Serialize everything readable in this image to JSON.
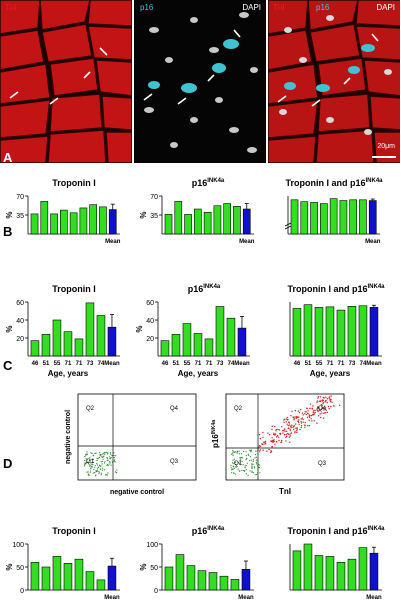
{
  "panel_labels": {
    "a": "A",
    "b": "B",
    "c": "C",
    "d": "D"
  },
  "micrographs": {
    "left": {
      "label": "TnI"
    },
    "middle": {
      "label_p16": "p16",
      "label_dapi": "DAPI"
    },
    "right": {
      "label_tni": "TnI",
      "label_p16": "p16",
      "label_dapi": "DAPI"
    },
    "scale_bar": "20μm"
  },
  "colors": {
    "bar": "#33dd22",
    "mean": "#1010d0",
    "red": "#c81818",
    "cyan": "#3fc3d0"
  },
  "chart_data": [
    {
      "id": "B1",
      "type": "bar",
      "title": "Troponin I",
      "ylabel": "%",
      "yticks": [
        "35",
        "70"
      ],
      "ylim": [
        0,
        70
      ],
      "values": [
        37,
        60,
        37,
        44,
        39,
        48,
        54,
        50
      ],
      "mean": 45,
      "mean_err": 10,
      "mean_label": "Mean"
    },
    {
      "id": "B2",
      "type": "bar",
      "title": "p16",
      "title_sup": "INK4a",
      "ylabel": "%",
      "yticks": [
        "35",
        "70"
      ],
      "ylim": [
        0,
        70
      ],
      "values": [
        36,
        60,
        36,
        46,
        40,
        52,
        56,
        51
      ],
      "mean": 46,
      "mean_err": 10,
      "mean_label": "Mean"
    },
    {
      "id": "B3",
      "type": "bar",
      "title": "Troponin I  and  p16",
      "title_sup": "INK4a",
      "ylabel": "",
      "yticks": [],
      "ylim": [
        90,
        100
      ],
      "values": [
        99,
        98.5,
        98.3,
        98,
        99.3,
        98.8,
        99,
        99
      ],
      "mean": 98.8,
      "mean_err": 0.4,
      "mean_label": "Mean"
    },
    {
      "id": "C1",
      "type": "bar",
      "title": "Troponin I",
      "ylabel": "%",
      "yticks": [
        "20",
        "40",
        "60"
      ],
      "ylim": [
        0,
        60
      ],
      "categories": [
        "46",
        "51",
        "55",
        "71",
        "71",
        "73",
        "74"
      ],
      "values": [
        17,
        24,
        40,
        27,
        19,
        59,
        45
      ],
      "mean": 32,
      "mean_err": 14,
      "mean_label": "Mean",
      "xlabel": "Age, years"
    },
    {
      "id": "C2",
      "type": "bar",
      "title": "p16",
      "title_sup": "INK4a",
      "ylabel": "%",
      "yticks": [
        "20",
        "40",
        "60"
      ],
      "ylim": [
        0,
        60
      ],
      "categories": [
        "46",
        "51",
        "55",
        "71",
        "71",
        "73",
        "74"
      ],
      "values": [
        17,
        24,
        36,
        25,
        19,
        55,
        42
      ],
      "mean": 31,
      "mean_err": 13,
      "mean_label": "Mean",
      "xlabel": "Age, years"
    },
    {
      "id": "C3",
      "type": "bar",
      "title": "Troponin I  and  p16",
      "title_sup": "INK4a",
      "ylabel": "",
      "yticks": [],
      "ylim": [
        0,
        100
      ],
      "categories": [
        "46",
        "51",
        "55",
        "71",
        "71",
        "73",
        "74"
      ],
      "values": [
        88,
        95,
        90,
        91,
        85,
        92,
        93
      ],
      "mean": 90,
      "mean_err": 4,
      "mean_label": "Mean",
      "xlabel": "Age, years"
    },
    {
      "id": "D1",
      "type": "bar",
      "title": "Troponin I",
      "ylabel": "%",
      "yticks": [
        "0",
        "50",
        "100"
      ],
      "ylim": [
        0,
        100
      ],
      "values": [
        60,
        50,
        73,
        58,
        67,
        40,
        22
      ],
      "mean": 52,
      "mean_err": 17,
      "mean_label": "Mean"
    },
    {
      "id": "D2",
      "type": "bar",
      "title": "p16",
      "title_sup": "INK4a",
      "ylabel": "%",
      "yticks": [
        "0",
        "50",
        "100"
      ],
      "ylim": [
        0,
        100
      ],
      "values": [
        50,
        77,
        53,
        42,
        38,
        30,
        23
      ],
      "mean": 45,
      "mean_err": 18,
      "mean_label": "Mean"
    },
    {
      "id": "D3",
      "type": "bar",
      "title": "Troponin I  and  p16",
      "title_sup": "INK4a",
      "ylabel": "",
      "yticks": [],
      "ylim": [
        0,
        100
      ],
      "values": [
        85,
        100,
        75,
        73,
        60,
        67,
        92
      ],
      "mean": 80,
      "mean_err": 13,
      "mean_label": "Mean"
    }
  ],
  "flow": {
    "left": {
      "xlabel": "negative control",
      "ylabel": "negative control",
      "quadrants": [
        "Q1",
        "Q2",
        "Q3",
        "Q4"
      ]
    },
    "right": {
      "xlabel": "TnI",
      "ylabel": "p16",
      "ylabel_sup": "INK4a",
      "quadrants": [
        "Q1",
        "Q2",
        "Q3",
        "Q4"
      ]
    },
    "ticks": [
      "10⁰",
      "10¹",
      "10²",
      "10³",
      "10⁴",
      "10⁵"
    ]
  }
}
